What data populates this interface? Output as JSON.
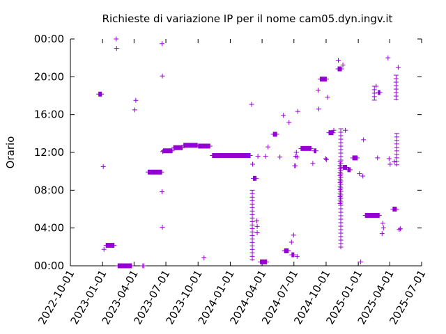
{
  "chart_data": {
    "type": "scatter",
    "title": "Richieste di variazione IP per il nome cam05.dyn.ingv.it",
    "xlabel": "",
    "ylabel": "Orario",
    "x_type": "date",
    "xlim": [
      "2022-10-01",
      "2025-07-01"
    ],
    "ylim": [
      "00:00",
      "24:00"
    ],
    "x_ticks": [
      "2022-10-01",
      "2023-01-01",
      "2023-04-01",
      "2023-07-01",
      "2023-10-01",
      "2024-01-01",
      "2024-04-01",
      "2024-07-01",
      "2024-10-01",
      "2025-01-01",
      "2025-04-01",
      "2025-07-01"
    ],
    "y_ticks": [
      "00:00",
      "04:00",
      "08:00",
      "12:00",
      "16:00",
      "20:00",
      "00:00"
    ],
    "grid": false,
    "legend": "none",
    "marker": "+",
    "color": "#9400d3",
    "series": [
      {
        "clusters": [
          {
            "x_start": "2022-12-20",
            "x_end": "2022-12-30",
            "y": "18:10"
          },
          {
            "x_start": "2023-01-10",
            "x_end": "2023-02-04",
            "y": "02:10"
          },
          {
            "x_start": "2023-02-13",
            "x_end": "2023-03-26",
            "y": "00:00"
          },
          {
            "x_start": "2023-05-10",
            "x_end": "2023-06-20",
            "y": "09:55"
          },
          {
            "x_start": "2023-06-24",
            "x_end": "2023-07-20",
            "y": "12:10"
          },
          {
            "x_start": "2023-07-22",
            "x_end": "2023-08-18",
            "y": "12:30"
          },
          {
            "x_start": "2023-08-20",
            "x_end": "2023-09-30",
            "y": "12:45"
          },
          {
            "x_start": "2023-10-01",
            "x_end": "2023-11-05",
            "y": "12:40"
          },
          {
            "x_start": "2023-11-10",
            "x_end": "2024-02-28",
            "y": "11:40"
          },
          {
            "x_start": "2024-03-06",
            "x_end": "2024-03-16",
            "y": "09:15"
          },
          {
            "x_start": "2024-03-26",
            "x_end": "2024-04-15",
            "y": "00:25"
          },
          {
            "x_start": "2024-05-02",
            "x_end": "2024-05-14",
            "y": "13:55"
          },
          {
            "x_start": "2024-06-03",
            "x_end": "2024-06-16",
            "y": "01:35"
          },
          {
            "x_start": "2024-06-24",
            "x_end": "2024-07-02",
            "y": "01:10"
          },
          {
            "x_start": "2024-07-02",
            "x_end": "2024-07-06",
            "y": "10:35"
          },
          {
            "x_start": "2024-07-20",
            "x_end": "2024-08-20",
            "y": "12:25"
          },
          {
            "x_start": "2024-08-27",
            "x_end": "2024-09-03",
            "y": "12:10"
          },
          {
            "x_start": "2024-09-13",
            "x_end": "2024-10-03",
            "y": "19:45"
          },
          {
            "x_start": "2024-10-08",
            "x_end": "2024-10-22",
            "y": "14:05"
          },
          {
            "x_start": "2024-11-03",
            "x_end": "2024-11-15",
            "y": "20:50"
          },
          {
            "x_start": "2024-11-18",
            "x_end": "2024-11-30",
            "y": "10:25"
          },
          {
            "x_start": "2024-12-01",
            "x_end": "2024-12-10",
            "y": "10:10"
          },
          {
            "x_start": "2024-12-15",
            "x_end": "2024-12-30",
            "y": "11:25"
          },
          {
            "x_start": "2025-01-20",
            "x_end": "2025-03-03",
            "y": "05:20"
          },
          {
            "x_start": "2025-02-26",
            "x_end": "2025-03-05",
            "y": "18:20"
          },
          {
            "x_start": "2025-04-09",
            "x_end": "2025-04-21",
            "y": "06:00"
          }
        ],
        "points": [
          [
            "2023-01-03",
            "10:30"
          ],
          [
            "2023-01-05",
            "01:45"
          ],
          [
            "2023-02-09",
            "29:30"
          ],
          [
            "2023-02-10",
            "23:00"
          ],
          [
            "2023-04-06",
            "17:30"
          ],
          [
            "2023-04-03",
            "16:30"
          ],
          [
            "2023-04-26",
            "00:00"
          ],
          [
            "2023-04-29",
            "00:00"
          ],
          [
            "2023-06-21",
            "20:05"
          ],
          [
            "2023-06-20",
            "23:30"
          ],
          [
            "2023-06-20",
            "07:50"
          ],
          [
            "2023-06-21",
            "04:05"
          ],
          [
            "2023-06-24",
            "12:10"
          ],
          [
            "2023-06-22",
            "12:05"
          ],
          [
            "2023-10-18",
            "00:50"
          ],
          [
            "2024-03-02",
            "17:05"
          ],
          [
            "2024-03-05",
            "10:45"
          ],
          [
            "2024-03-17",
            "04:45"
          ],
          [
            "2024-03-18",
            "04:10"
          ],
          [
            "2024-03-18",
            "03:30"
          ],
          [
            "2024-03-20",
            "11:35"
          ],
          [
            "2024-04-11",
            "11:35"
          ],
          [
            "2024-04-18",
            "12:35"
          ],
          [
            "2024-05-22",
            "11:30"
          ],
          [
            "2024-06-01",
            "15:55"
          ],
          [
            "2024-06-17",
            "15:10"
          ],
          [
            "2024-06-24",
            "02:30"
          ],
          [
            "2024-06-30",
            "03:15"
          ],
          [
            "2024-07-06",
            "11:35"
          ],
          [
            "2024-07-08",
            "12:00"
          ],
          [
            "2024-07-10",
            "11:30"
          ],
          [
            "2024-07-12",
            "16:20"
          ],
          [
            "2024-07-10",
            "01:00"
          ],
          [
            "2024-08-24",
            "10:50"
          ],
          [
            "2024-09-08",
            "18:35"
          ],
          [
            "2024-09-10",
            "16:35"
          ],
          [
            "2024-09-30",
            "11:20"
          ],
          [
            "2024-10-05",
            "17:50"
          ],
          [
            "2024-10-02",
            "11:15"
          ],
          [
            "2024-10-23",
            "14:20"
          ],
          [
            "2024-11-05",
            "21:45"
          ],
          [
            "2024-11-18",
            "21:15"
          ],
          [
            "2024-11-25",
            "14:20"
          ],
          [
            "2025-01-04",
            "09:45"
          ],
          [
            "2025-01-08",
            "00:25"
          ],
          [
            "2025-01-16",
            "13:20"
          ],
          [
            "2025-01-14",
            "09:30"
          ],
          [
            "2025-02-21",
            "19:00"
          ],
          [
            "2025-02-25",
            "11:25"
          ],
          [
            "2025-03-12",
            "04:30"
          ],
          [
            "2025-03-14",
            "04:00"
          ],
          [
            "2025-03-10",
            "03:25"
          ],
          [
            "2025-03-27",
            "22:00"
          ],
          [
            "2025-03-30",
            "11:20"
          ],
          [
            "2025-04-02",
            "10:45"
          ],
          [
            "2025-04-14",
            "11:00"
          ],
          [
            "2025-04-25",
            "21:00"
          ],
          [
            "2025-04-28",
            "03:50"
          ],
          [
            "2025-05-01",
            "03:55"
          ]
        ],
        "vertical_runs": [
          {
            "x": "2024-03-04",
            "y_from": "00:30",
            "y_to": "08:00"
          },
          {
            "x": "2024-11-12",
            "y_from": "01:45",
            "y_to": "14:30"
          },
          {
            "x": "2024-11-10",
            "y_from": "06:30",
            "y_to": "11:00"
          },
          {
            "x": "2025-02-16",
            "y_from": "17:30",
            "y_to": "19:00"
          },
          {
            "x": "2025-04-19",
            "y_from": "17:30",
            "y_to": "20:10"
          },
          {
            "x": "2025-04-21",
            "y_from": "10:30",
            "y_to": "14:00"
          }
        ]
      }
    ]
  }
}
